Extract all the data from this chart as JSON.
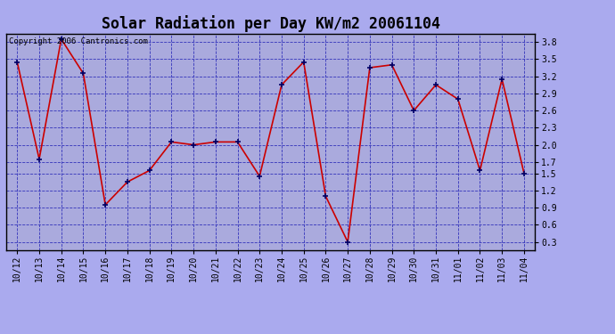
{
  "title": "Solar Radiation per Day KW/m2 20061104",
  "copyright_text": "Copyright 2006 Cantronics.com",
  "x_labels": [
    "10/12",
    "10/13",
    "10/14",
    "10/15",
    "10/16",
    "10/17",
    "10/18",
    "10/19",
    "10/20",
    "10/21",
    "10/22",
    "10/23",
    "10/24",
    "10/25",
    "10/26",
    "10/27",
    "10/28",
    "10/29",
    "10/30",
    "10/31",
    "11/01",
    "11/02",
    "11/03",
    "11/04"
  ],
  "y_values": [
    3.45,
    1.75,
    3.85,
    3.25,
    0.95,
    1.35,
    1.55,
    2.05,
    2.0,
    2.05,
    2.05,
    1.45,
    3.05,
    3.45,
    1.1,
    0.3,
    3.35,
    3.4,
    2.6,
    3.05,
    2.8,
    1.55,
    3.15,
    1.5
  ],
  "line_color": "#cc0000",
  "marker_color": "#000066",
  "fig_bg_color": "#aaaaee",
  "plot_bg_color": "#aaaadd",
  "grid_color": "#3333bb",
  "title_color": "#000000",
  "border_color": "#000000",
  "ylim_min": 0.15,
  "ylim_max": 3.95,
  "yticks": [
    0.3,
    0.6,
    0.9,
    1.2,
    1.5,
    1.7,
    2.0,
    2.3,
    2.6,
    2.9,
    3.2,
    3.5,
    3.8
  ],
  "title_fontsize": 12,
  "tick_fontsize": 7,
  "copyright_fontsize": 6.5
}
